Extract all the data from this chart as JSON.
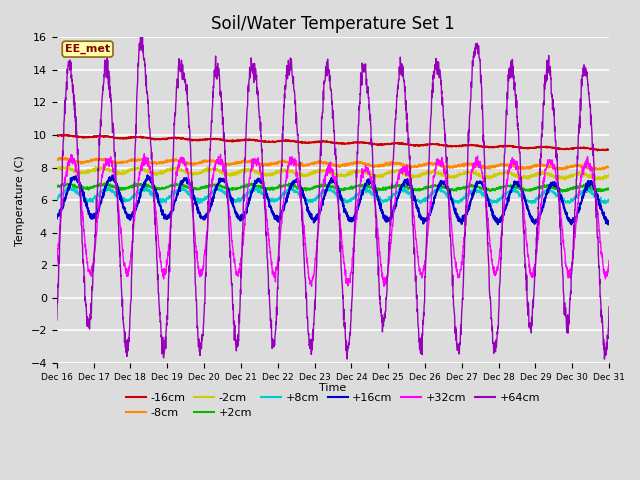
{
  "title": "Soil/Water Temperature Set 1",
  "xlabel": "Time",
  "ylabel": "Temperature (C)",
  "annotation": "EE_met",
  "ylim": [
    -4,
    16
  ],
  "yticks": [
    -4,
    -2,
    0,
    2,
    4,
    6,
    8,
    10,
    12,
    14,
    16
  ],
  "n_days": 15,
  "x_labels": [
    "Dec 16",
    "Dec 17",
    "Dec 18",
    "Dec 19",
    "Dec 20",
    "Dec 21",
    "Dec 22",
    "Dec 23",
    "Dec 24",
    "Dec 25",
    "Dec 26",
    "Dec 27",
    "Dec 28",
    "Dec 29",
    "Dec 30",
    "Dec 31"
  ],
  "background_color": "#dcdcdc",
  "plot_bg_color": "#dcdcdc",
  "grid_color": "#ffffff",
  "title_fontsize": 12,
  "legend_fontsize": 8,
  "series": [
    {
      "label": "-16cm",
      "color": "#cc0000"
    },
    {
      "label": "-8cm",
      "color": "#ff8800"
    },
    {
      "label": "-2cm",
      "color": "#cccc00"
    },
    {
      "label": "+2cm",
      "color": "#00bb00"
    },
    {
      "label": "+8cm",
      "color": "#00cccc"
    },
    {
      "label": "+16cm",
      "color": "#0000cc"
    },
    {
      "label": "+32cm",
      "color": "#ff00ff"
    },
    {
      "label": "+64cm",
      "color": "#9900bb"
    }
  ]
}
